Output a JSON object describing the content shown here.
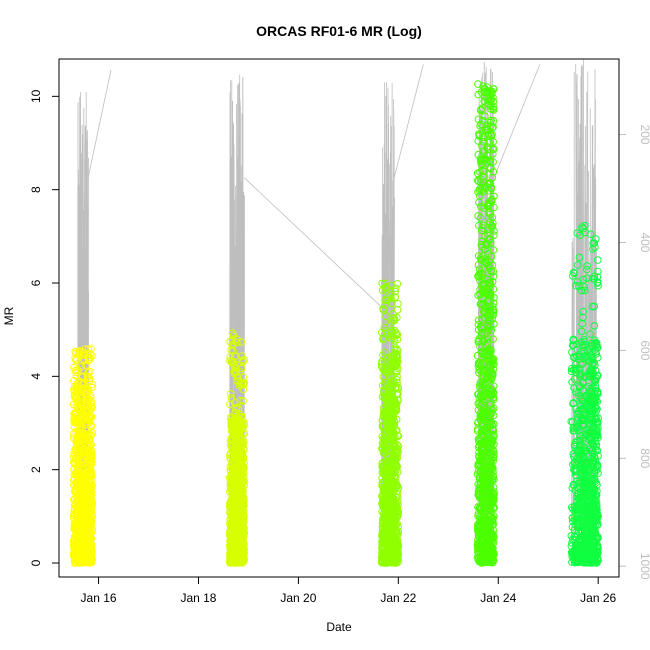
{
  "chart_data": {
    "type": "scatter",
    "title": "ORCAS RF01-6 MR (Log)",
    "xlabel": "Date",
    "ylabel": "MR",
    "x_ticks": [
      "Jan 16",
      "Jan 18",
      "Jan 20",
      "Jan 22",
      "Jan 24",
      "Jan 26"
    ],
    "y_ticks": [
      "0",
      "2",
      "4",
      "6",
      "8",
      "10"
    ],
    "y2_ticks": [
      "200",
      "400",
      "600",
      "800",
      "1000"
    ],
    "xlim": [
      "2016-01-15 05:00",
      "2016-01-26 10:00"
    ],
    "ylim": [
      -0.3,
      10.8
    ],
    "y2lim": [
      1020,
      60
    ],
    "y2_inverted": true,
    "grid": false,
    "legend": "none",
    "secondary_series": {
      "color": "#bebebe",
      "style": "line",
      "flights": [
        {
          "x": [
            "2016-01-15 14:00",
            "2016-01-15 19:00"
          ],
          "y2": [
            1000,
            120
          ],
          "connect_next": [
            "2016-01-16 06:00",
            80
          ]
        },
        {
          "x": [
            "2016-01-18 15:00",
            "2016-01-18 22:00"
          ],
          "y2": [
            1000,
            80
          ],
          "connect_next": [
            "2016-01-21 16:00",
            520
          ]
        },
        {
          "x": [
            "2016-01-21 16:00",
            "2016-01-21 22:00"
          ],
          "y2": [
            1000,
            100
          ],
          "connect_next": [
            "2016-01-22 12:00",
            70
          ]
        },
        {
          "x": [
            "2016-01-23 14:00",
            "2016-01-23 22:00"
          ],
          "y2": [
            1000,
            60
          ],
          "connect_next": [
            "2016-01-24 20:00",
            70
          ]
        },
        {
          "x": [
            "2016-01-25 11:00",
            "2016-01-25 23:00"
          ],
          "y2": [
            1000,
            60
          ],
          "connect_next": null
        }
      ]
    },
    "series": [
      {
        "color": "#ffff00",
        "x_range": [
          "2016-01-15 12:00",
          "2016-01-15 21:00"
        ],
        "mr_max": 4.6,
        "mr_peak_dense": 4.0
      },
      {
        "color": "#d8ff00",
        "x_range": [
          "2016-01-18 15:00",
          "2016-01-18 22:00"
        ],
        "mr_max": 5.0,
        "mr_peak_dense": 3.2
      },
      {
        "color": "#90ff00",
        "x_range": [
          "2016-01-21 16:00",
          "2016-01-22 00:00"
        ],
        "mr_max": 6.0,
        "mr_peak_dense": 4.5
      },
      {
        "color": "#4cff00",
        "x_range": [
          "2016-01-23 14:00",
          "2016-01-23 22:00"
        ],
        "mr_max": 10.3,
        "mr_peak_dense": 9.7
      },
      {
        "color": "#10ff40",
        "x_range": [
          "2016-01-25 11:00",
          "2016-01-26 00:00"
        ],
        "mr_max": 7.3,
        "mr_peak_dense": 4.8
      }
    ]
  }
}
